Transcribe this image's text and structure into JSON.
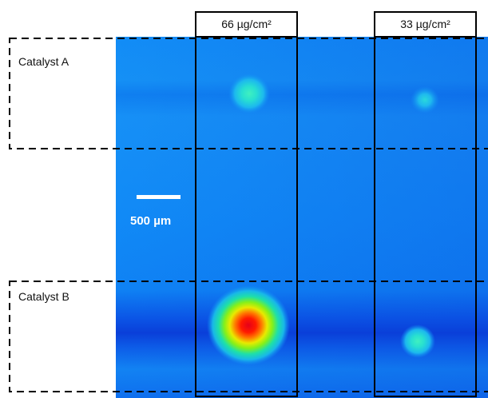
{
  "image": {
    "type": "fluorescence-map",
    "colormap": [
      "#0b3fe0",
      "#0e88f7",
      "#18d4c8",
      "#b8f000",
      "#ff2a00"
    ]
  },
  "columns": [
    {
      "label": "66 µg/cm²"
    },
    {
      "label": "33 µg/cm²"
    }
  ],
  "rows": [
    {
      "label": "Catalyst A"
    },
    {
      "label": "Catalyst B"
    }
  ],
  "scale_bar": {
    "label": "500 µm"
  },
  "colors": {
    "frame": "#000000",
    "scale_bar": "#ffffff"
  }
}
